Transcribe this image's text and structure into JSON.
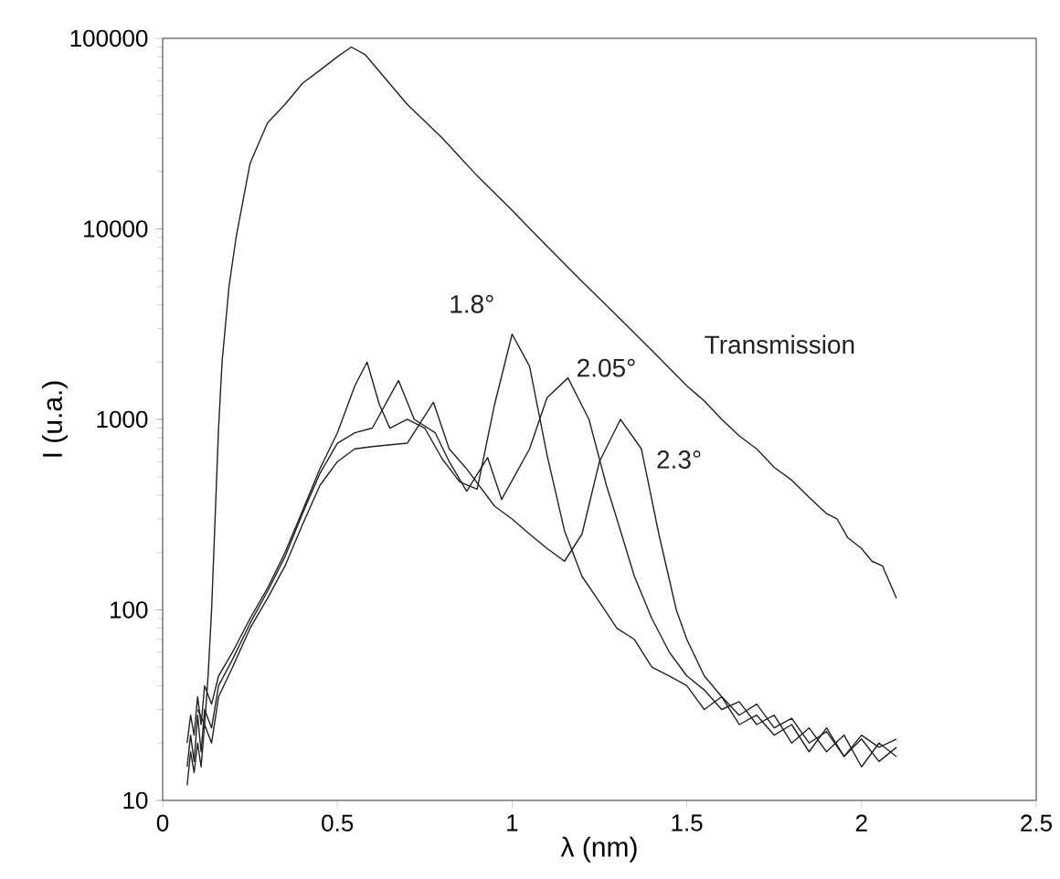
{
  "chart_data": {
    "type": "line",
    "xlabel": "λ (nm)",
    "ylabel": "I (u.a.)",
    "log": "y",
    "xlim": [
      0,
      2.5
    ],
    "xticks": [
      0,
      0.5,
      1,
      1.5,
      2,
      2.5
    ],
    "ylim": [
      10,
      100000
    ],
    "yticks": [
      10,
      100,
      1000,
      10000,
      100000
    ],
    "grid": false,
    "legend": false,
    "marker": "none",
    "line_style": "solid",
    "series": [
      {
        "name": "Transmission",
        "color": "#222222",
        "x": [
          0.1,
          0.12,
          0.13,
          0.14,
          0.15,
          0.16,
          0.17,
          0.19,
          0.21,
          0.25,
          0.3,
          0.35,
          0.4,
          0.45,
          0.5,
          0.54,
          0.58,
          0.7,
          0.8,
          0.9,
          1.0,
          1.1,
          1.2,
          1.3,
          1.4,
          1.5,
          1.55,
          1.6,
          1.65,
          1.7,
          1.75,
          1.8,
          1.85,
          1.9,
          1.93,
          1.96,
          2.0,
          2.03,
          2.06,
          2.08,
          2.1
        ],
        "values": [
          30,
          25,
          45,
          100,
          300,
          900,
          2000,
          5000,
          9000,
          22000,
          36000,
          45000,
          58000,
          68000,
          80000,
          90000,
          82000,
          45000,
          30000,
          19000,
          12500,
          8100,
          5300,
          3500,
          2300,
          1500,
          1250,
          1000,
          820,
          700,
          560,
          480,
          390,
          320,
          300,
          240,
          210,
          180,
          170,
          140,
          115
        ]
      },
      {
        "name": "1.8°",
        "color": "#222222",
        "x": [
          0.07,
          0.08,
          0.09,
          0.1,
          0.11,
          0.12,
          0.14,
          0.16,
          0.2,
          0.25,
          0.3,
          0.35,
          0.4,
          0.45,
          0.5,
          0.55,
          0.585,
          0.62,
          0.65,
          0.7,
          0.75,
          0.8,
          0.85,
          0.9,
          0.95,
          1.0,
          1.05,
          1.1,
          1.15,
          1.2,
          1.25,
          1.3,
          1.35,
          1.4,
          1.45,
          1.5,
          1.55,
          1.6,
          1.65,
          1.7,
          1.75,
          1.8,
          1.85,
          1.9,
          1.95,
          2.0,
          2.05,
          2.1
        ],
        "values": [
          20,
          28,
          22,
          35,
          25,
          40,
          32,
          45,
          60,
          90,
          130,
          200,
          330,
          550,
          850,
          1500,
          2000,
          1200,
          900,
          1000,
          900,
          620,
          470,
          430,
          1200,
          2800,
          1900,
          650,
          260,
          150,
          110,
          80,
          70,
          50,
          45,
          40,
          30,
          35,
          25,
          28,
          22,
          25,
          18,
          24,
          17,
          22,
          19,
          21
        ]
      },
      {
        "name": "2.05°",
        "color": "#222222",
        "x": [
          0.07,
          0.08,
          0.09,
          0.1,
          0.11,
          0.12,
          0.14,
          0.16,
          0.2,
          0.25,
          0.3,
          0.35,
          0.4,
          0.45,
          0.5,
          0.55,
          0.6,
          0.675,
          0.72,
          0.78,
          0.82,
          0.87,
          0.93,
          0.97,
          1.05,
          1.1,
          1.16,
          1.22,
          1.27,
          1.3,
          1.35,
          1.4,
          1.45,
          1.5,
          1.55,
          1.6,
          1.65,
          1.7,
          1.75,
          1.8,
          1.85,
          1.9,
          1.95,
          2.0,
          2.05,
          2.1
        ],
        "values": [
          15,
          22,
          16,
          28,
          18,
          30,
          24,
          40,
          55,
          85,
          125,
          190,
          320,
          520,
          750,
          850,
          900,
          1600,
          1000,
          850,
          600,
          420,
          630,
          380,
          700,
          1300,
          1650,
          1000,
          450,
          300,
          150,
          90,
          60,
          45,
          38,
          30,
          33,
          25,
          28,
          20,
          24,
          18,
          22,
          15,
          20,
          17
        ]
      },
      {
        "name": "2.3°",
        "color": "#222222",
        "x": [
          0.07,
          0.08,
          0.09,
          0.1,
          0.11,
          0.12,
          0.14,
          0.16,
          0.2,
          0.25,
          0.3,
          0.35,
          0.4,
          0.45,
          0.5,
          0.55,
          0.6,
          0.7,
          0.775,
          0.82,
          0.87,
          0.95,
          1.0,
          1.05,
          1.1,
          1.15,
          1.2,
          1.25,
          1.31,
          1.37,
          1.42,
          1.47,
          1.5,
          1.55,
          1.6,
          1.65,
          1.7,
          1.75,
          1.8,
          1.85,
          1.9,
          1.95,
          2.0,
          2.05,
          2.1
        ],
        "values": [
          12,
          18,
          14,
          20,
          15,
          25,
          20,
          35,
          50,
          80,
          115,
          170,
          280,
          450,
          600,
          700,
          720,
          750,
          1230,
          700,
          550,
          350,
          300,
          250,
          210,
          180,
          250,
          600,
          1000,
          700,
          250,
          100,
          70,
          45,
          35,
          28,
          32,
          24,
          27,
          20,
          23,
          17,
          21,
          16,
          19
        ]
      }
    ]
  }
}
